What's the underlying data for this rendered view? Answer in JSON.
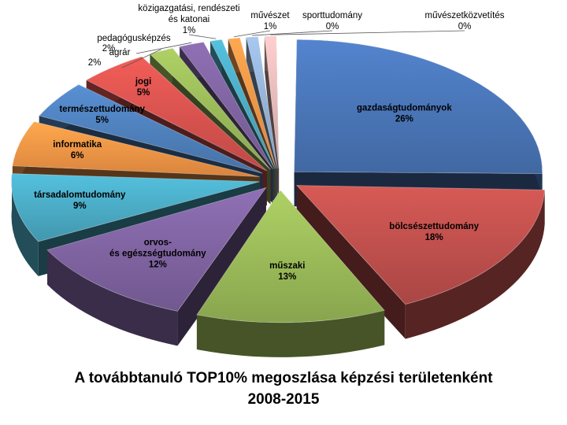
{
  "chart_data": {
    "type": "pie",
    "style": "exploded 3D pie",
    "title_line1": "A továbbtanuló TOP10% megoszlása képzési területenként",
    "title_line2": "2008-2015",
    "slices": [
      {
        "label": "gazdaságtudományok",
        "value": 26,
        "value_label": "26%",
        "color": "#4a76b8"
      },
      {
        "label": "bölcsészettudomány",
        "value": 18,
        "value_label": "18%",
        "color": "#c0504d"
      },
      {
        "label": "műszaki",
        "value": 13,
        "value_label": "13%",
        "color": "#9bbb59"
      },
      {
        "label": "orvos- és egészségtudomány",
        "value": 12,
        "value_label": "12%",
        "color": "#8064a2"
      },
      {
        "label": "társadalomtudomány",
        "value": 9,
        "value_label": "9%",
        "color": "#4bacc6"
      },
      {
        "label": "informatika",
        "value": 6,
        "value_label": "6%",
        "color": "#f79646"
      },
      {
        "label": "természettudomány",
        "value": 5,
        "value_label": "5%",
        "color": "#4f81bd"
      },
      {
        "label": "jogi",
        "value": 5,
        "value_label": "5%",
        "color": "#d9534f"
      },
      {
        "label": "agrár",
        "value": 2,
        "value_label": "2%",
        "color": "#9bbb59"
      },
      {
        "label": "pedagógusképzés",
        "value": 2,
        "value_label": "2%",
        "color": "#8064a2"
      },
      {
        "label": "közigazgatási, rendészeti és katonai",
        "value": 1,
        "value_label": "1%",
        "color": "#4bacc6"
      },
      {
        "label": "művészet",
        "value": 1,
        "value_label": "1%",
        "color": "#f79646"
      },
      {
        "label": "sporttudomány",
        "value": 0,
        "value_label": "0%",
        "color": "#95b3d7"
      },
      {
        "label": "művészetközvetítés",
        "value": 0,
        "value_label": "0%",
        "color": "#e6b9b8"
      }
    ]
  }
}
